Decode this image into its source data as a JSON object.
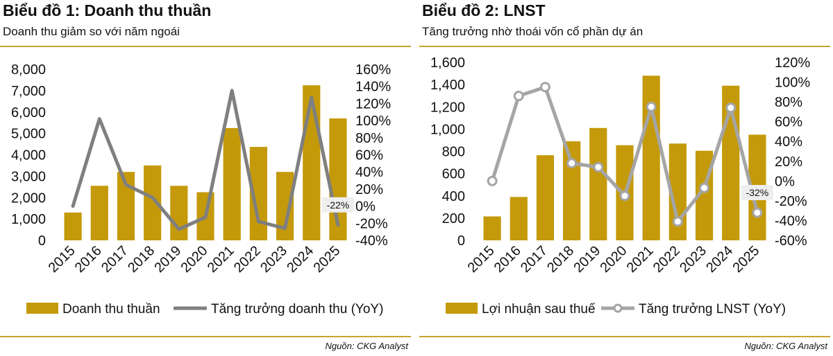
{
  "charts": [
    {
      "title": "Biểu đồ 1: Doanh thu thuần",
      "subtitle": "Doanh thu giảm so với năm ngoái",
      "source": "Nguồn: CKG Analyst"
    },
    {
      "title": "Biểu đồ 2: LNST",
      "subtitle": "Tăng trưởng nhờ thoái vốn cổ phần dự án",
      "source": "Nguồn: CKG Analyst"
    }
  ],
  "colors": {
    "bar": "#c49a0a",
    "line1": "#7f7f7f",
    "line2": "#a5a5a5",
    "rule": "#c9a22f"
  },
  "chart_data": [
    {
      "type": "bar",
      "categories": [
        "2015",
        "2016",
        "2017",
        "2018",
        "2019",
        "2020",
        "2021",
        "2022",
        "2023",
        "2024",
        "2025"
      ],
      "series": [
        {
          "name": "Doanh thu thuần",
          "type": "bar",
          "axis": "left",
          "values": [
            1300,
            2550,
            3200,
            3500,
            2550,
            2250,
            5250,
            4370,
            3200,
            7250,
            5700
          ]
        },
        {
          "name": "Tăng trưởng doanh thu (YoY)",
          "type": "line",
          "axis": "right",
          "markers": false,
          "values": [
            0,
            102,
            25,
            10,
            -27,
            -13,
            135,
            -18,
            -26,
            127,
            -22
          ]
        }
      ],
      "y_left": {
        "min": 0,
        "max": 8000,
        "ticks": [
          "0",
          "1,000",
          "2,000",
          "3,000",
          "4,000",
          "5,000",
          "6,000",
          "7,000",
          "8,000"
        ]
      },
      "y_right": {
        "min": -40,
        "max": 160,
        "ticks": [
          "-40%",
          "-20%",
          "0%",
          "20%",
          "40%",
          "60%",
          "80%",
          "100%",
          "120%",
          "140%",
          "160%"
        ]
      },
      "annotation": {
        "text": "-22%",
        "index": 10
      },
      "legend_position": "bottom",
      "grid": false
    },
    {
      "type": "bar",
      "categories": [
        "2015",
        "2016",
        "2017",
        "2018",
        "2019",
        "2020",
        "2021",
        "2022",
        "2023",
        "2024",
        "2025"
      ],
      "series": [
        {
          "name": "Lợi nhuận sau thuế",
          "type": "bar",
          "axis": "left",
          "values": [
            215,
            390,
            765,
            890,
            1010,
            855,
            1480,
            870,
            805,
            1390,
            950
          ]
        },
        {
          "name": "Tăng trưởng LNST (YoY)",
          "type": "line",
          "axis": "right",
          "markers": true,
          "values": [
            0,
            86,
            95,
            18,
            14,
            -15,
            75,
            -41,
            -7,
            74,
            -32
          ]
        }
      ],
      "y_left": {
        "min": 0,
        "max": 1600,
        "ticks": [
          "0",
          "200",
          "400",
          "600",
          "800",
          "1,000",
          "1,200",
          "1,400",
          "1,600"
        ]
      },
      "y_right": {
        "min": -60,
        "max": 120,
        "ticks": [
          "-60%",
          "-40%",
          "-20%",
          "0%",
          "20%",
          "40%",
          "60%",
          "80%",
          "100%",
          "120%"
        ]
      },
      "annotation": {
        "text": "-32%",
        "index": 10
      },
      "legend_position": "bottom",
      "grid": false
    }
  ]
}
